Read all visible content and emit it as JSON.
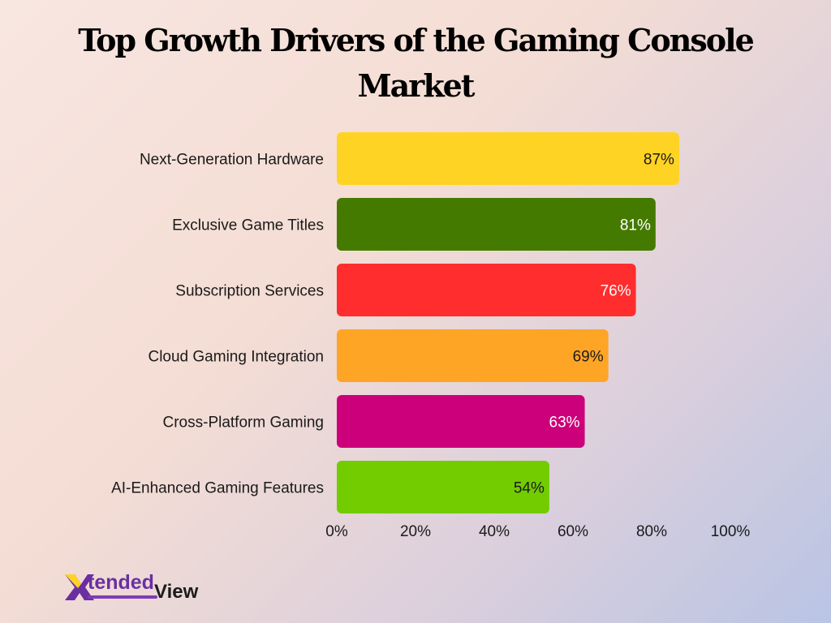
{
  "title_line1": "Top Growth Drivers of the Gaming Console",
  "title_line2": "Market",
  "brand": {
    "part1": "tended",
    "part2": "View"
  },
  "chart_data": {
    "type": "bar",
    "orientation": "horizontal",
    "categories": [
      "Next-Generation Hardware",
      "Exclusive Game Titles",
      "Subscription Services",
      "Cloud Gaming Integration",
      "Cross-Platform Gaming",
      "AI-Enhanced Gaming Features"
    ],
    "values": [
      87,
      81,
      76,
      69,
      63,
      54
    ],
    "value_labels": [
      "87%",
      "81%",
      "76%",
      "69%",
      "63%",
      "54%"
    ],
    "colors": [
      "#ffd323",
      "#457a00",
      "#ff2d2d",
      "#ffa526",
      "#cc007a",
      "#72cc00"
    ],
    "label_colors": [
      "#1a1a1a",
      "#ffffff",
      "#ffffff",
      "#1a1a1a",
      "#ffffff",
      "#1a1a1a"
    ],
    "xlim": [
      0,
      100
    ],
    "xticks": [
      "0%",
      "20%",
      "40%",
      "60%",
      "80%",
      "100%"
    ],
    "grid": false,
    "legend": "none"
  }
}
